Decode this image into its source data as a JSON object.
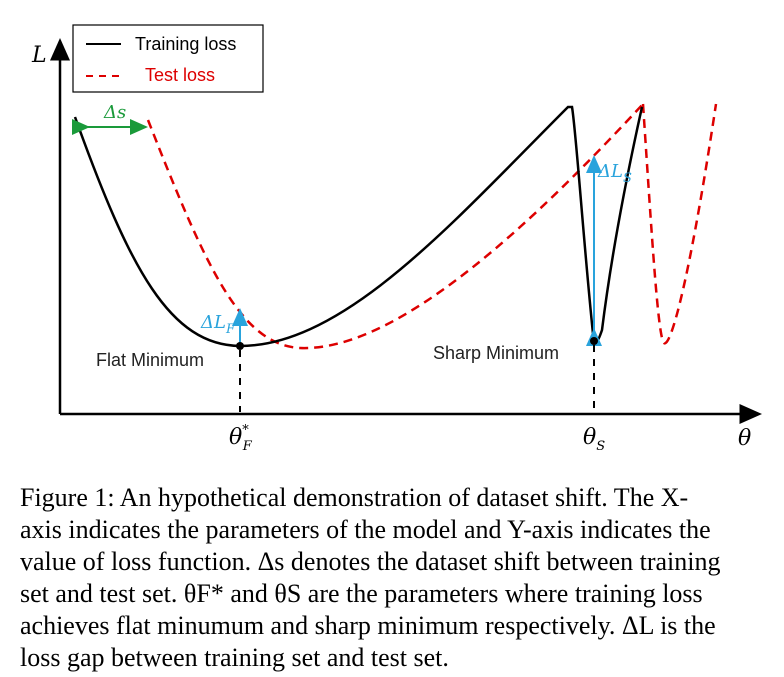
{
  "axes": {
    "y_label": "L",
    "x_label": "θ"
  },
  "legend": {
    "items": [
      {
        "label": "Training loss",
        "color": "#000000"
      },
      {
        "label": "Test loss",
        "color": "#dd0000"
      }
    ]
  },
  "annotations": {
    "shift": "Δs",
    "gap_flat": "ΔL",
    "gap_flat_sub": "F",
    "gap_sharp": "ΔL",
    "gap_sharp_sub": "S",
    "flat_minimum": "Flat Minimum",
    "sharp_minimum": "Sharp Minimum",
    "theta_f": "θ",
    "theta_f_sub": "F",
    "theta_f_sup": "*",
    "theta_s": "θ",
    "theta_s_sub": "S"
  },
  "colors": {
    "train": "#000000",
    "test": "#dd0000",
    "shift_arrow": "#1a9a3a",
    "gap_arrow": "#29a3dc"
  },
  "caption": {
    "lines": [
      "Figure 1: An hypothetical demonstration of dataset shift. The X-",
      "axis indicates the parameters of the model and Y-axis indicates the",
      "value of loss function. Δs denotes the dataset shift between training",
      "set and test set. θF* and θS are the parameters where training loss",
      "achieves flat minumum and sharp minimum respectively. ΔL is the",
      "loss gap between training set and test set."
    ]
  }
}
